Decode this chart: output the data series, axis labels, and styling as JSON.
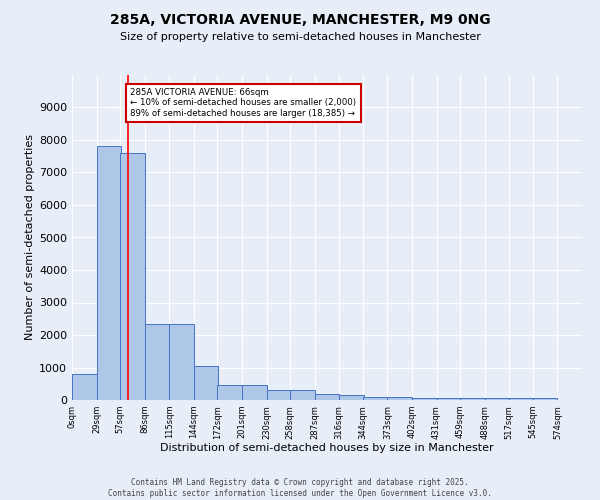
{
  "title": "285A, VICTORIA AVENUE, MANCHESTER, M9 0NG",
  "subtitle": "Size of property relative to semi-detached houses in Manchester",
  "xlabel": "Distribution of semi-detached houses by size in Manchester",
  "ylabel": "Number of semi-detached properties",
  "bin_edges": [
    0,
    29,
    57,
    86,
    115,
    144,
    172,
    201,
    230,
    258,
    287,
    316,
    344,
    373,
    402,
    431,
    459,
    488,
    517,
    545,
    574
  ],
  "bar_heights": [
    800,
    7800,
    7600,
    2350,
    2350,
    1050,
    475,
    475,
    300,
    300,
    175,
    150,
    100,
    100,
    55,
    50,
    50,
    50,
    50,
    50
  ],
  "bar_color": "#aec6e8",
  "bar_edge_color": "#4472c4",
  "background_color": "#e8eef8",
  "grid_color": "#ffffff",
  "red_line_x": 66,
  "annotation_text": "285A VICTORIA AVENUE: 66sqm\n← 10% of semi-detached houses are smaller (2,000)\n89% of semi-detached houses are larger (18,385) →",
  "annotation_box_color": "#ffffff",
  "annotation_box_edge_color": "#cc0000",
  "ylim": [
    0,
    10000
  ],
  "yticks": [
    0,
    1000,
    2000,
    3000,
    4000,
    5000,
    6000,
    7000,
    8000,
    9000,
    10000
  ],
  "footer_line1": "Contains HM Land Registry data © Crown copyright and database right 2025.",
  "footer_line2": "Contains public sector information licensed under the Open Government Licence v3.0.",
  "tick_labels": [
    "0sqm",
    "29sqm",
    "57sqm",
    "86sqm",
    "115sqm",
    "144sqm",
    "172sqm",
    "201sqm",
    "230sqm",
    "258sqm",
    "287sqm",
    "316sqm",
    "344sqm",
    "373sqm",
    "402sqm",
    "431sqm",
    "459sqm",
    "488sqm",
    "517sqm",
    "545sqm",
    "574sqm"
  ]
}
